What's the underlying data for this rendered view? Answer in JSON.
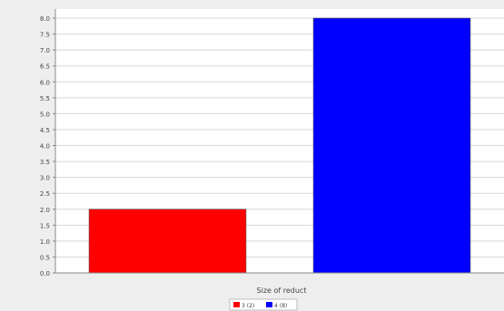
{
  "chart_data": {
    "type": "bar",
    "title": "",
    "xlabel": "Size of reduct",
    "ylabel": "",
    "ylim": [
      0,
      8.0
    ],
    "yticks": [
      0.0,
      0.5,
      1.0,
      1.5,
      2.0,
      2.5,
      3.0,
      3.5,
      4.0,
      4.5,
      5.0,
      5.5,
      6.0,
      6.5,
      7.0,
      7.5,
      8.0
    ],
    "ytick_labels": [
      "0.0",
      "0.5",
      "1.0",
      "1.5",
      "2.0",
      "2.5",
      "3.0",
      "3.5",
      "4.0",
      "4.5",
      "5.0",
      "5.5",
      "6.0",
      "6.5",
      "7.0",
      "7.5",
      "8.0"
    ],
    "grid": true,
    "legend_position": "bottom-center",
    "series": [
      {
        "name": "3 (2)",
        "values": [
          2.0
        ],
        "color": "#ff0000"
      },
      {
        "name": "4 (8)",
        "values": [
          8.0
        ],
        "color": "#0000ff"
      }
    ]
  },
  "colors": {
    "background": "#eeeeee",
    "plot_background": "#ffffff",
    "gridline": "#d8d8d8",
    "axis": "#888888",
    "text": "#444444"
  }
}
